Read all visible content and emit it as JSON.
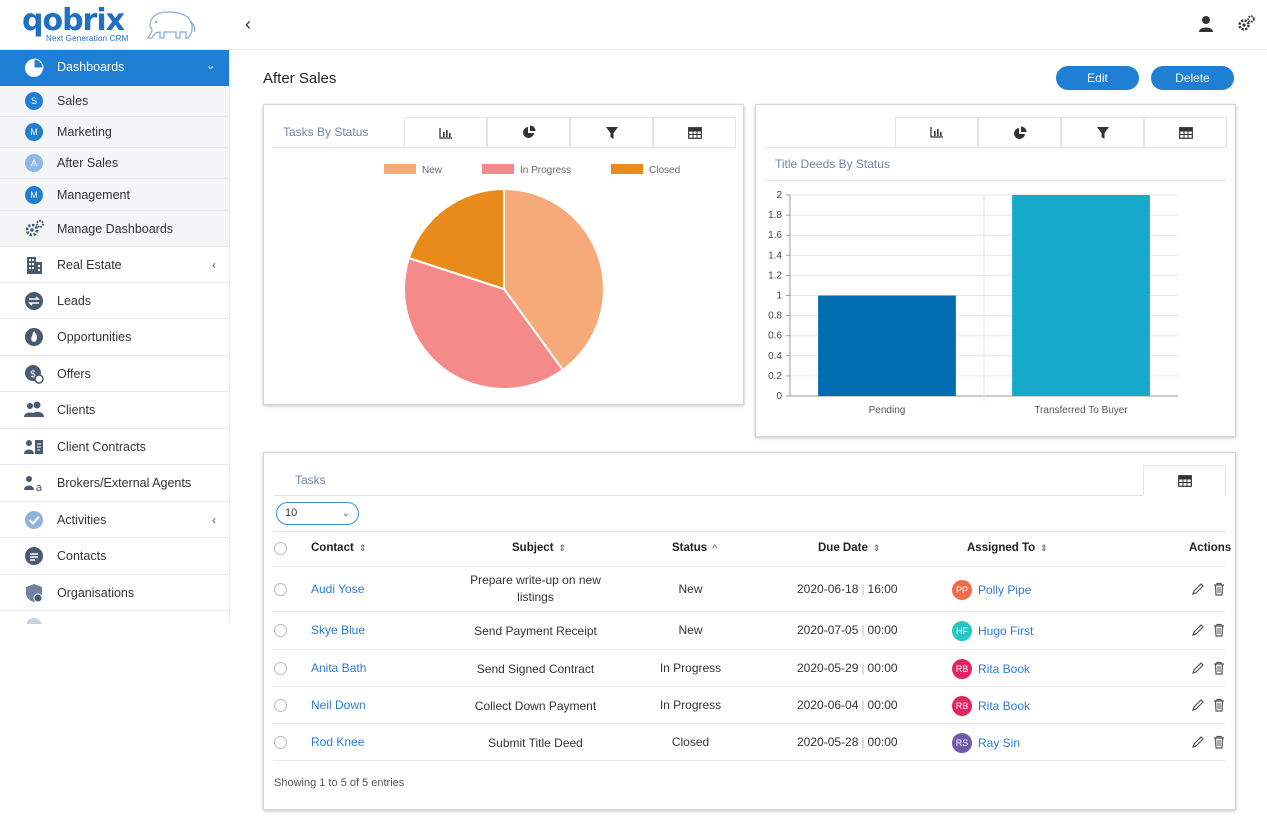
{
  "brand": {
    "name": "qobrix",
    "tagline": "Next Generation CRM"
  },
  "sidebar": {
    "active": {
      "label": "Dashboards"
    },
    "subitems": [
      {
        "badge": "S",
        "label": "Sales"
      },
      {
        "badge": "M",
        "label": "Marketing"
      },
      {
        "badge": "A",
        "label": "After Sales"
      },
      {
        "badge": "M",
        "label": "Management"
      }
    ],
    "manage": {
      "label": "Manage Dashboards"
    },
    "items": [
      {
        "label": "Real Estate",
        "icon": "building-icon"
      },
      {
        "label": "Leads",
        "icon": "swap-icon"
      },
      {
        "label": "Opportunities",
        "icon": "flame-icon"
      },
      {
        "label": "Offers",
        "icon": "offer-icon"
      },
      {
        "label": "Clients",
        "icon": "users-icon"
      },
      {
        "label": "Client Contracts",
        "icon": "contract-icon"
      },
      {
        "label": "Brokers/External Agents",
        "icon": "broker-icon"
      },
      {
        "label": "Activities",
        "icon": "check-icon"
      },
      {
        "label": "Contacts",
        "icon": "chat-icon"
      },
      {
        "label": "Organisations",
        "icon": "shield-icon"
      }
    ]
  },
  "page": {
    "title": "After Sales",
    "edit_label": "Edit",
    "delete_label": "Delete"
  },
  "pie_card": {
    "title": "Tasks By Status"
  },
  "bar_card": {
    "title": "Title Deeds By Status"
  },
  "chart_data": [
    {
      "type": "pie",
      "title": "Tasks By Status",
      "categories": [
        "New",
        "In Progress",
        "Closed"
      ],
      "values": [
        2,
        2,
        1
      ],
      "colors": [
        "#f6aa79",
        "#f48a89",
        "#e88b1a"
      ],
      "legend": "top"
    },
    {
      "type": "bar",
      "title": "Title Deeds By Status",
      "categories": [
        "Pending",
        "Transferred To Buyer"
      ],
      "values": [
        1,
        2
      ],
      "colors": [
        "#006db3",
        "#17a9cb"
      ],
      "ylim": [
        0,
        2
      ],
      "yticks": [
        "0",
        "0.2",
        "0.4",
        "0.6",
        "0.8",
        "1",
        "1.2",
        "1.4",
        "1.6",
        "1.8",
        "2"
      ],
      "grid": true
    }
  ],
  "tasks": {
    "title": "Tasks",
    "page_size": "10",
    "columns": {
      "contact": "Contact",
      "subject": "Subject",
      "status": "Status",
      "due": "Due Date",
      "assigned": "Assigned To",
      "actions": "Actions"
    },
    "rows": [
      {
        "contact": "Audi Yose",
        "subject": "Prepare write-up on new listings",
        "status": "New",
        "date": "2020-06-18",
        "time": "16:00",
        "initials": "PP",
        "assignee": "Polly Pipe",
        "avatar_color": "#f26b4a"
      },
      {
        "contact": "Skye Blue",
        "subject": "Send Payment Receipt",
        "status": "New",
        "date": "2020-07-05",
        "time": "00:00",
        "initials": "HF",
        "assignee": "Hugo First",
        "avatar_color": "#26c6c6"
      },
      {
        "contact": "Anita Bath",
        "subject": "Send Signed Contract",
        "status": "In Progress",
        "date": "2020-05-29",
        "time": "00:00",
        "initials": "RB",
        "assignee": "Rita Book",
        "avatar_color": "#e2255e"
      },
      {
        "contact": "Neil Down",
        "subject": "Collect Down Payment",
        "status": "In Progress",
        "date": "2020-06-04",
        "time": "00:00",
        "initials": "RB",
        "assignee": "Rita Book",
        "avatar_color": "#e2255e"
      },
      {
        "contact": "Rod Knee",
        "subject": "Submit Title Deed",
        "status": "Closed",
        "date": "2020-05-28",
        "time": "00:00",
        "initials": "RS",
        "assignee": "Ray Sin",
        "avatar_color": "#6b5ba8"
      }
    ],
    "footer": "Showing 1 to 5 of 5 entries"
  }
}
